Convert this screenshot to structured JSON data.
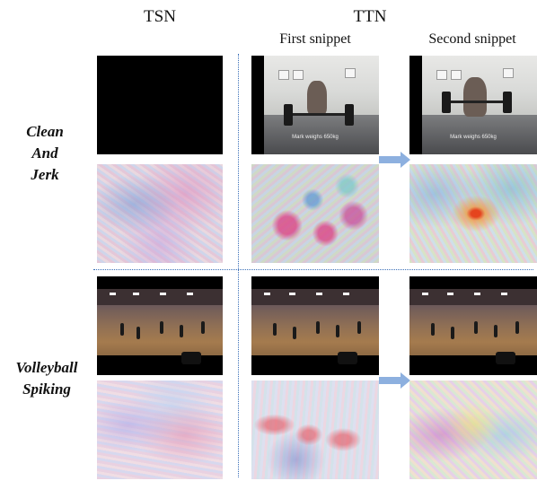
{
  "headers": {
    "tsn": "TSN",
    "ttn": "TTN",
    "first_snippet": "First snippet",
    "second_snippet": "Second snippet"
  },
  "rows": [
    {
      "label_lines": [
        "Clean",
        "And",
        "Jerk"
      ],
      "video_caption": "Mark weighs 650kg"
    },
    {
      "label_lines": [
        "Volleyball",
        "Spiking"
      ]
    }
  ],
  "colors": {
    "divider": "#3a6fb8",
    "arrow": "#8db0df"
  },
  "icons": {
    "arrow": "right-arrow-icon"
  }
}
